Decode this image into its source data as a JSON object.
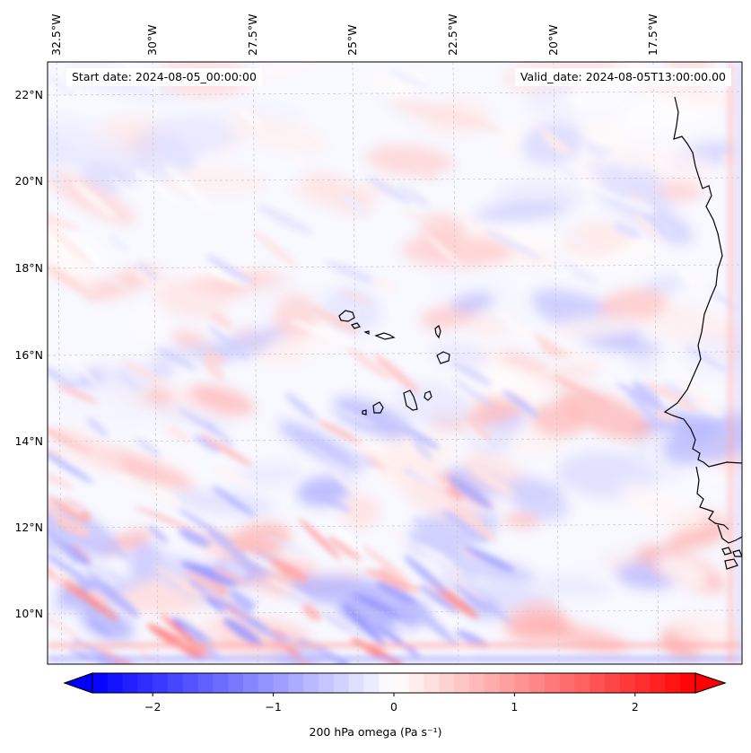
{
  "header": {
    "start_date": "Start date: 2024-08-05_00:00:00",
    "valid_date": "Valid_date: 2024-08-05T13:00:00.00"
  },
  "map": {
    "lon_labels": [
      "32.5°W",
      "30°W",
      "27.5°W",
      "25°W",
      "22.5°W",
      "20°W",
      "17.5°W"
    ],
    "lat_labels": [
      "22°N",
      "20°N",
      "18°N",
      "16°N",
      "14°N",
      "12°N",
      "10°N"
    ],
    "gridlines": true,
    "coastline_color": "#000000",
    "variable_colormap": "blue-white-red (bwr)"
  },
  "colorbar": {
    "ticks": [
      "−2",
      "−1",
      "0",
      "1",
      "2"
    ],
    "tick_values": [
      -2,
      -1,
      0,
      1,
      2
    ],
    "range": [
      -2.5,
      2.5
    ],
    "extend": "both",
    "label": "200 hPa omega (Pa s⁻¹)",
    "colors": {
      "low": "#0000ff",
      "mid": "#ffffff",
      "high": "#ff0000"
    }
  }
}
